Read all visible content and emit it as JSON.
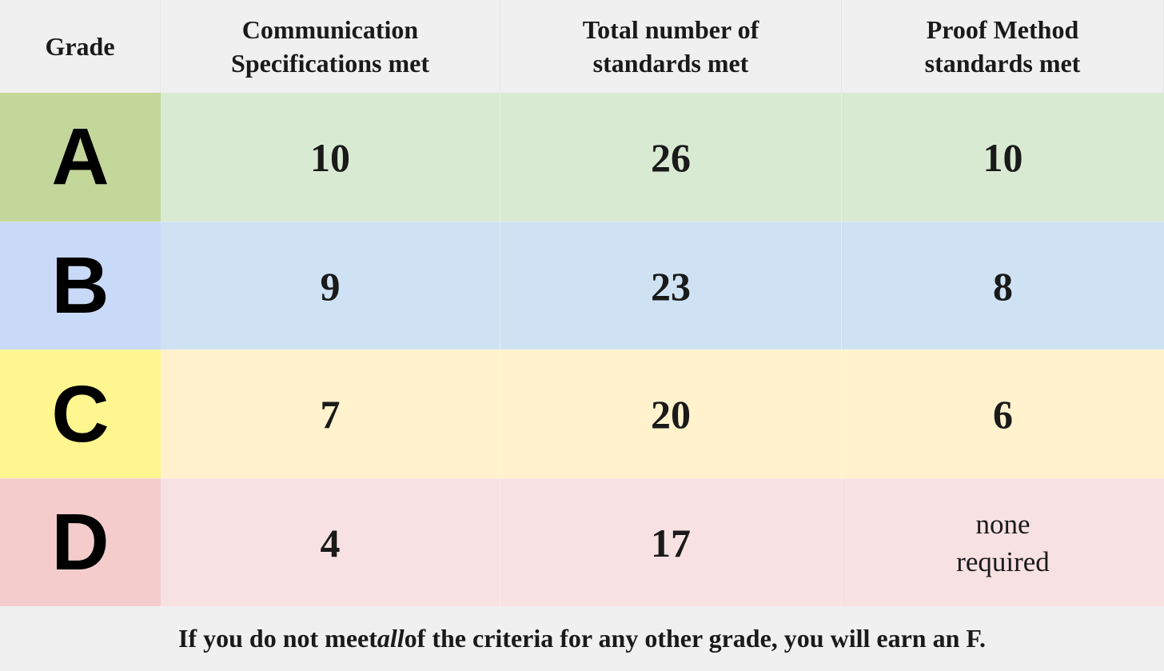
{
  "table": {
    "headers": [
      "Grade",
      "Communication\nSpecifications met",
      "Total number of\nstandards met",
      "Proof Method\nstandards met"
    ],
    "rows": [
      {
        "grade": "A",
        "communication": "10",
        "total": "26",
        "proof": "10",
        "grade_color": "#c4d79b",
        "row_color": "#d9ead3"
      },
      {
        "grade": "B",
        "communication": "9",
        "total": "23",
        "proof": "8",
        "grade_color": "#c9daf8",
        "row_color": "#cfe2f3"
      },
      {
        "grade": "C",
        "communication": "7",
        "total": "20",
        "proof": "6",
        "grade_color": "#fff68f",
        "row_color": "#fff2cc"
      },
      {
        "grade": "D",
        "communication": "4",
        "total": "17",
        "proof": "none\nrequired",
        "grade_color": "#f4cccc",
        "row_color": "#f8e1e3"
      }
    ]
  },
  "footer": {
    "before": "If you do not meet ",
    "emphasis": "all",
    "after": " of the criteria for any other grade, you will earn an F."
  }
}
